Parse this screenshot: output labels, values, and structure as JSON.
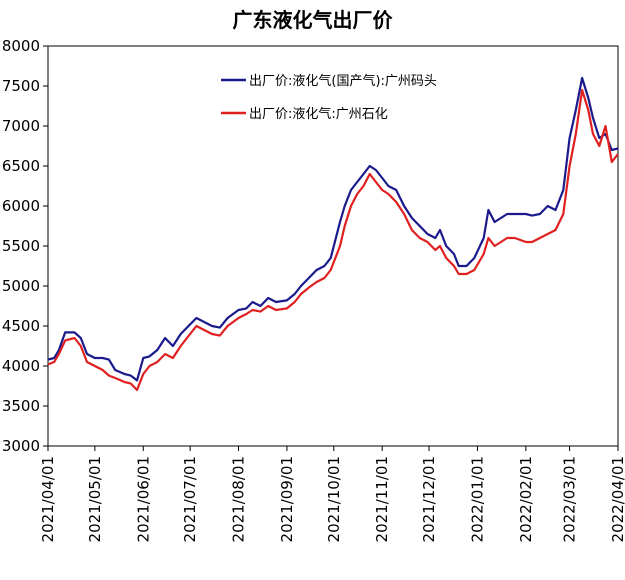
{
  "chart_data": {
    "type": "line",
    "title": "广东液化气出厂价",
    "xlabel": "",
    "ylabel": "",
    "ylim": [
      3000,
      8000
    ],
    "yticks": [
      3000,
      3500,
      4000,
      4500,
      5000,
      5500,
      6000,
      6500,
      7000,
      7500,
      8000
    ],
    "xlim": [
      "2021/04/01",
      "2022/04/01"
    ],
    "xticks": [
      "2021/04/01",
      "2021/05/01",
      "2021/06/01",
      "2021/07/01",
      "2021/08/01",
      "2021/09/01",
      "2021/10/01",
      "2021/11/01",
      "2021/12/01",
      "2022/01/01",
      "2022/02/01",
      "2022/03/01",
      "2022/04/01"
    ],
    "grid": false,
    "legend_position": "top-right",
    "series": [
      {
        "name": "出厂价:液化气(国产气):广州码头",
        "color": "#1a1a8c",
        "points": [
          [
            "2021/04/01",
            4080
          ],
          [
            "2021/04/05",
            4100
          ],
          [
            "2021/04/08",
            4200
          ],
          [
            "2021/04/12",
            4420
          ],
          [
            "2021/04/18",
            4420
          ],
          [
            "2021/04/22",
            4350
          ],
          [
            "2021/04/26",
            4150
          ],
          [
            "2021/05/01",
            4100
          ],
          [
            "2021/05/06",
            4100
          ],
          [
            "2021/05/10",
            4080
          ],
          [
            "2021/05/14",
            3950
          ],
          [
            "2021/05/20",
            3900
          ],
          [
            "2021/05/24",
            3880
          ],
          [
            "2021/05/28",
            3820
          ],
          [
            "2021/06/01",
            4100
          ],
          [
            "2021/06/05",
            4120
          ],
          [
            "2021/06/10",
            4200
          ],
          [
            "2021/06/15",
            4350
          ],
          [
            "2021/06/20",
            4250
          ],
          [
            "2021/06/25",
            4400
          ],
          [
            "2021/07/01",
            4520
          ],
          [
            "2021/07/05",
            4600
          ],
          [
            "2021/07/10",
            4550
          ],
          [
            "2021/07/15",
            4500
          ],
          [
            "2021/07/20",
            4480
          ],
          [
            "2021/07/25",
            4600
          ],
          [
            "2021/08/01",
            4700
          ],
          [
            "2021/08/06",
            4720
          ],
          [
            "2021/08/10",
            4800
          ],
          [
            "2021/08/15",
            4750
          ],
          [
            "2021/08/20",
            4850
          ],
          [
            "2021/08/25",
            4800
          ],
          [
            "2021/09/01",
            4820
          ],
          [
            "2021/09/06",
            4900
          ],
          [
            "2021/09/10",
            5000
          ],
          [
            "2021/09/15",
            5100
          ],
          [
            "2021/09/20",
            5200
          ],
          [
            "2021/09/25",
            5250
          ],
          [
            "2021/09/29",
            5350
          ],
          [
            "2021/10/05",
            5800
          ],
          [
            "2021/10/08",
            6000
          ],
          [
            "2021/10/12",
            6200
          ],
          [
            "2021/10/16",
            6300
          ],
          [
            "2021/10/20",
            6400
          ],
          [
            "2021/10/24",
            6500
          ],
          [
            "2021/10/28",
            6450
          ],
          [
            "2021/11/01",
            6350
          ],
          [
            "2021/11/05",
            6250
          ],
          [
            "2021/11/10",
            6200
          ],
          [
            "2021/11/15",
            6000
          ],
          [
            "2021/11/20",
            5850
          ],
          [
            "2021/11/25",
            5750
          ],
          [
            "2021/11/30",
            5650
          ],
          [
            "2021/12/05",
            5600
          ],
          [
            "2021/12/08",
            5700
          ],
          [
            "2021/12/12",
            5500
          ],
          [
            "2021/12/17",
            5400
          ],
          [
            "2021/12/20",
            5250
          ],
          [
            "2021/12/25",
            5250
          ],
          [
            "2021/12/30",
            5350
          ],
          [
            "2022/01/05",
            5600
          ],
          [
            "2022/01/08",
            5950
          ],
          [
            "2022/01/12",
            5800
          ],
          [
            "2022/01/16",
            5850
          ],
          [
            "2022/01/20",
            5900
          ],
          [
            "2022/01/25",
            5900
          ],
          [
            "2022/02/01",
            5900
          ],
          [
            "2022/02/05",
            5880
          ],
          [
            "2022/02/10",
            5900
          ],
          [
            "2022/02/15",
            6000
          ],
          [
            "2022/02/20",
            5950
          ],
          [
            "2022/02/25",
            6200
          ],
          [
            "2022/03/01",
            6850
          ],
          [
            "2022/03/05",
            7200
          ],
          [
            "2022/03/09",
            7600
          ],
          [
            "2022/03/13",
            7350
          ],
          [
            "2022/03/16",
            7100
          ],
          [
            "2022/03/20",
            6850
          ],
          [
            "2022/03/24",
            6900
          ],
          [
            "2022/03/28",
            6700
          ],
          [
            "2022/04/01",
            6720
          ]
        ]
      },
      {
        "name": "出厂价:液化气:广州石化",
        "color": "#e02020",
        "points": [
          [
            "2021/04/01",
            4020
          ],
          [
            "2021/04/05",
            4050
          ],
          [
            "2021/04/08",
            4150
          ],
          [
            "2021/04/12",
            4320
          ],
          [
            "2021/04/18",
            4350
          ],
          [
            "2021/04/22",
            4250
          ],
          [
            "2021/04/26",
            4050
          ],
          [
            "2021/05/01",
            4000
          ],
          [
            "2021/05/06",
            3950
          ],
          [
            "2021/05/10",
            3880
          ],
          [
            "2021/05/14",
            3850
          ],
          [
            "2021/05/20",
            3800
          ],
          [
            "2021/05/24",
            3780
          ],
          [
            "2021/05/28",
            3700
          ],
          [
            "2021/06/01",
            3900
          ],
          [
            "2021/06/05",
            4000
          ],
          [
            "2021/06/10",
            4050
          ],
          [
            "2021/06/15",
            4150
          ],
          [
            "2021/06/20",
            4100
          ],
          [
            "2021/06/25",
            4250
          ],
          [
            "2021/07/01",
            4400
          ],
          [
            "2021/07/05",
            4500
          ],
          [
            "2021/07/10",
            4450
          ],
          [
            "2021/07/15",
            4400
          ],
          [
            "2021/07/20",
            4380
          ],
          [
            "2021/07/25",
            4500
          ],
          [
            "2021/08/01",
            4600
          ],
          [
            "2021/08/06",
            4650
          ],
          [
            "2021/08/10",
            4700
          ],
          [
            "2021/08/15",
            4680
          ],
          [
            "2021/08/20",
            4750
          ],
          [
            "2021/08/25",
            4700
          ],
          [
            "2021/09/01",
            4720
          ],
          [
            "2021/09/06",
            4800
          ],
          [
            "2021/09/10",
            4900
          ],
          [
            "2021/09/15",
            4980
          ],
          [
            "2021/09/20",
            5050
          ],
          [
            "2021/09/25",
            5100
          ],
          [
            "2021/09/29",
            5200
          ],
          [
            "2021/10/05",
            5500
          ],
          [
            "2021/10/08",
            5750
          ],
          [
            "2021/10/12",
            6000
          ],
          [
            "2021/10/16",
            6150
          ],
          [
            "2021/10/20",
            6250
          ],
          [
            "2021/10/24",
            6400
          ],
          [
            "2021/10/28",
            6300
          ],
          [
            "2021/11/01",
            6200
          ],
          [
            "2021/11/05",
            6150
          ],
          [
            "2021/11/10",
            6050
          ],
          [
            "2021/11/15",
            5900
          ],
          [
            "2021/11/20",
            5700
          ],
          [
            "2021/11/25",
            5600
          ],
          [
            "2021/11/30",
            5550
          ],
          [
            "2021/12/05",
            5450
          ],
          [
            "2021/12/08",
            5500
          ],
          [
            "2021/12/12",
            5350
          ],
          [
            "2021/12/17",
            5250
          ],
          [
            "2021/12/20",
            5150
          ],
          [
            "2021/12/25",
            5150
          ],
          [
            "2021/12/30",
            5200
          ],
          [
            "2022/01/05",
            5400
          ],
          [
            "2022/01/08",
            5600
          ],
          [
            "2022/01/12",
            5500
          ],
          [
            "2022/01/16",
            5550
          ],
          [
            "2022/01/20",
            5600
          ],
          [
            "2022/01/25",
            5600
          ],
          [
            "2022/02/01",
            5550
          ],
          [
            "2022/02/05",
            5550
          ],
          [
            "2022/02/10",
            5600
          ],
          [
            "2022/02/15",
            5650
          ],
          [
            "2022/02/20",
            5700
          ],
          [
            "2022/02/25",
            5900
          ],
          [
            "2022/03/01",
            6500
          ],
          [
            "2022/03/05",
            6900
          ],
          [
            "2022/03/09",
            7450
          ],
          [
            "2022/03/13",
            7200
          ],
          [
            "2022/03/16",
            6900
          ],
          [
            "2022/03/20",
            6750
          ],
          [
            "2022/03/24",
            7000
          ],
          [
            "2022/03/28",
            6550
          ],
          [
            "2022/04/01",
            6650
          ]
        ]
      }
    ]
  }
}
